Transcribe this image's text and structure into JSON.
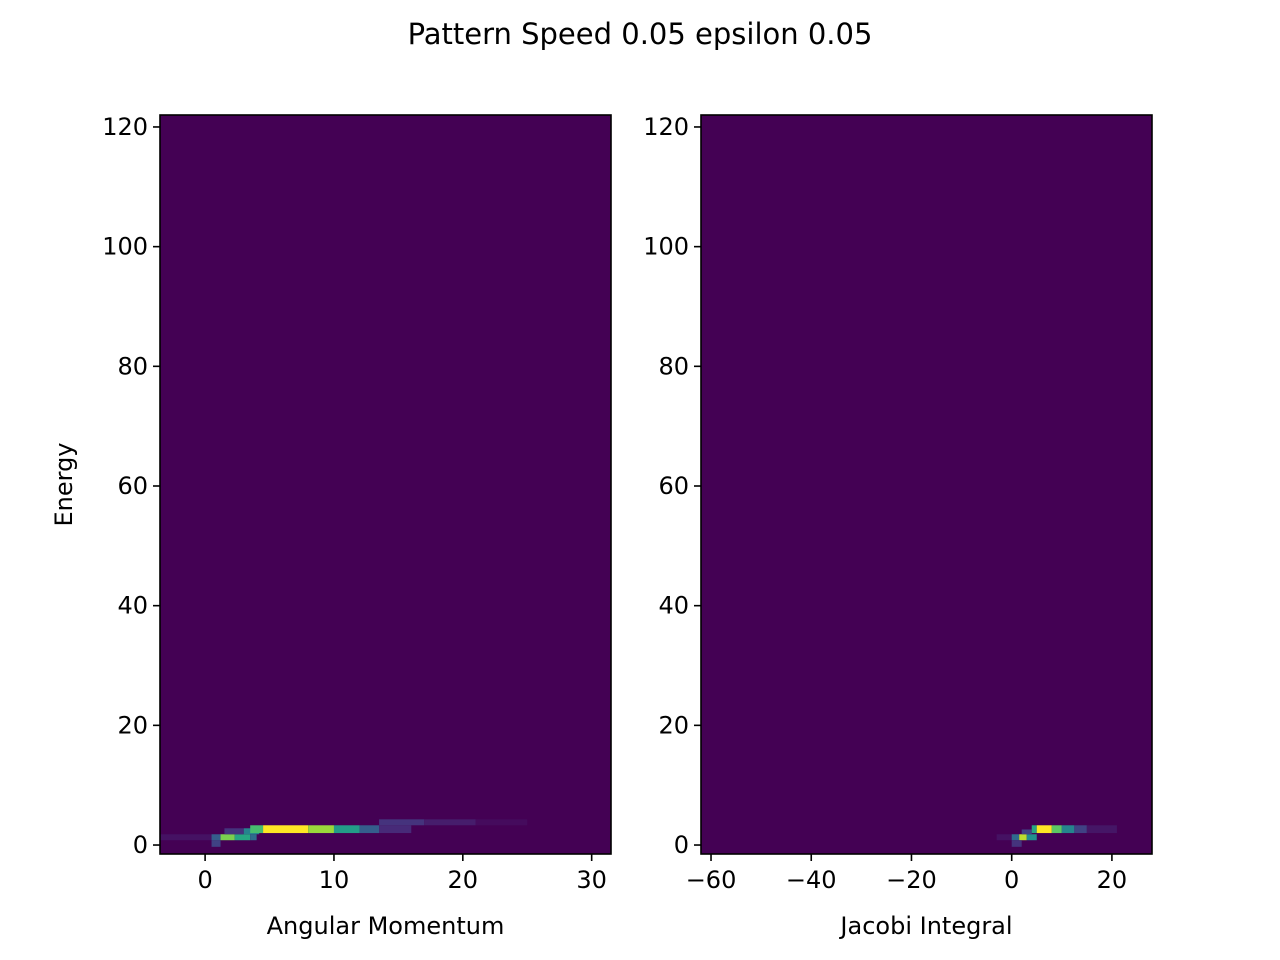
{
  "figure": {
    "suptitle": "Pattern Speed 0.05 epsilon 0.05",
    "colormap": "viridis",
    "background_color": "#440154",
    "peak_color": "#fde725"
  },
  "chart_data": [
    {
      "type": "heatmap",
      "xlabel": "Angular Momentum",
      "ylabel": "Energy",
      "xlim": [
        -3.5,
        31.5
      ],
      "ylim": [
        -1.5,
        122
      ],
      "xticks": [
        0,
        10,
        20,
        30
      ],
      "yticks": [
        0,
        20,
        40,
        60,
        80,
        100,
        120
      ],
      "cells": [
        {
          "x0": 0.5,
          "x1": 1.2,
          "y0": -0.3,
          "y1": 0.8,
          "v": 0.2
        },
        {
          "x0": -3.5,
          "x1": 0.5,
          "y0": 0.8,
          "y1": 1.8,
          "v": 0.05
        },
        {
          "x0": 0.5,
          "x1": 1.2,
          "y0": 0.8,
          "y1": 1.8,
          "v": 0.3
        },
        {
          "x0": 1.2,
          "x1": 2.3,
          "y0": 0.8,
          "y1": 1.8,
          "v": 0.8
        },
        {
          "x0": 2.3,
          "x1": 3.5,
          "y0": 0.8,
          "y1": 1.8,
          "v": 0.6
        },
        {
          "x0": 3.5,
          "x1": 4.0,
          "y0": 0.8,
          "y1": 1.8,
          "v": 0.35
        },
        {
          "x0": 1.5,
          "x1": 3.0,
          "y0": 1.8,
          "y1": 2.8,
          "v": 0.15
        },
        {
          "x0": 3.0,
          "x1": 4.2,
          "y0": 1.8,
          "y1": 2.8,
          "v": 0.45
        },
        {
          "x0": 3.5,
          "x1": 4.5,
          "y0": 2.0,
          "y1": 3.3,
          "v": 0.7
        },
        {
          "x0": 4.5,
          "x1": 8.0,
          "y0": 2.0,
          "y1": 3.3,
          "v": 1.0
        },
        {
          "x0": 8.0,
          "x1": 10.0,
          "y0": 2.0,
          "y1": 3.3,
          "v": 0.85
        },
        {
          "x0": 10.0,
          "x1": 12.0,
          "y0": 2.0,
          "y1": 3.3,
          "v": 0.55
        },
        {
          "x0": 12.0,
          "x1": 13.5,
          "y0": 2.0,
          "y1": 3.3,
          "v": 0.3
        },
        {
          "x0": 13.5,
          "x1": 16.0,
          "y0": 2.0,
          "y1": 3.3,
          "v": 0.12
        },
        {
          "x0": 13.5,
          "x1": 17.0,
          "y0": 3.3,
          "y1": 4.3,
          "v": 0.15
        },
        {
          "x0": 17.0,
          "x1": 21.0,
          "y0": 3.3,
          "y1": 4.3,
          "v": 0.08
        },
        {
          "x0": 21.0,
          "x1": 25.0,
          "y0": 3.3,
          "y1": 4.3,
          "v": 0.03
        }
      ]
    },
    {
      "type": "heatmap",
      "xlabel": "Jacobi Integral",
      "ylabel": "",
      "xlim": [
        -62,
        28
      ],
      "ylim": [
        -1.5,
        122
      ],
      "xticks": [
        -60,
        -40,
        -20,
        0,
        20
      ],
      "yticks": [
        0,
        20,
        40,
        60,
        80,
        100,
        120
      ],
      "cells": [
        {
          "x0": -3.0,
          "x1": 0.0,
          "y0": 0.8,
          "y1": 1.8,
          "v": 0.05
        },
        {
          "x0": 0.0,
          "x1": 1.5,
          "y0": 0.8,
          "y1": 1.8,
          "v": 0.35
        },
        {
          "x0": 1.5,
          "x1": 3.0,
          "y0": 0.8,
          "y1": 1.8,
          "v": 0.9
        },
        {
          "x0": 3.0,
          "x1": 5.0,
          "y0": 0.8,
          "y1": 1.8,
          "v": 0.5
        },
        {
          "x0": 0.0,
          "x1": 2.0,
          "y0": -0.3,
          "y1": 0.8,
          "v": 0.15
        },
        {
          "x0": 2.0,
          "x1": 4.0,
          "y0": 1.8,
          "y1": 2.6,
          "v": 0.2
        },
        {
          "x0": 4.0,
          "x1": 5.0,
          "y0": 2.0,
          "y1": 3.3,
          "v": 0.6
        },
        {
          "x0": 5.0,
          "x1": 8.0,
          "y0": 2.0,
          "y1": 3.3,
          "v": 1.0
        },
        {
          "x0": 8.0,
          "x1": 10.0,
          "y0": 2.0,
          "y1": 3.3,
          "v": 0.75
        },
        {
          "x0": 10.0,
          "x1": 12.5,
          "y0": 2.0,
          "y1": 3.3,
          "v": 0.45
        },
        {
          "x0": 12.5,
          "x1": 15.0,
          "y0": 2.0,
          "y1": 3.3,
          "v": 0.2
        },
        {
          "x0": 15.0,
          "x1": 21.0,
          "y0": 2.0,
          "y1": 3.3,
          "v": 0.06
        }
      ]
    }
  ]
}
